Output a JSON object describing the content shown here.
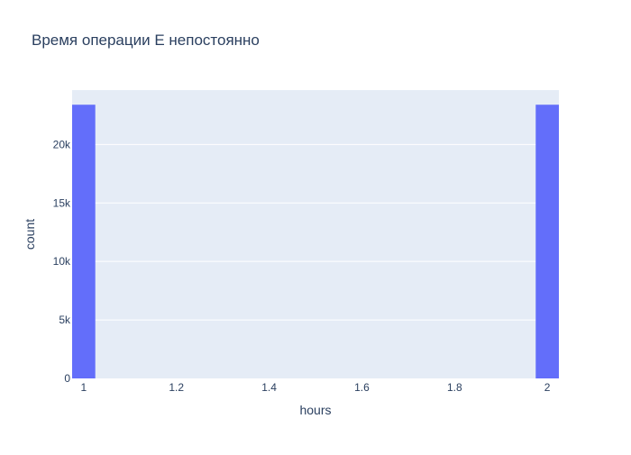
{
  "chart_data": {
    "type": "bar",
    "title": "Время операции Е непостоянно",
    "xlabel": "hours",
    "ylabel": "count",
    "xlim": [
      0.975,
      2.025
    ],
    "ylim": [
      0,
      24650
    ],
    "x_ticks": [
      1,
      1.2,
      1.4,
      1.6,
      1.8,
      2
    ],
    "x_tick_labels": [
      "1",
      "1.2",
      "1.4",
      "1.6",
      "1.8",
      "2"
    ],
    "y_ticks": [
      0,
      5000,
      10000,
      15000,
      20000
    ],
    "y_tick_labels": [
      "0",
      "5k",
      "10k",
      "15k",
      "20k"
    ],
    "bin_width": 0.05,
    "bars": [
      {
        "x_start": 0.975,
        "x_end": 1.025,
        "value": 23400
      },
      {
        "x_start": 1.975,
        "x_end": 2.025,
        "value": 23400
      }
    ],
    "grid": true,
    "colors": {
      "bar": "#636efa",
      "plot_bg": "#e5ecf6",
      "grid": "#ffffff",
      "text": "#2a3f5f"
    }
  }
}
